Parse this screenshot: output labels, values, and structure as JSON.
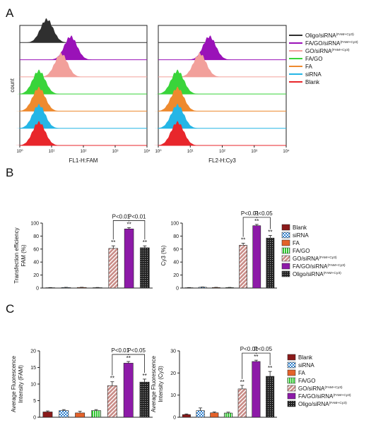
{
  "panels": {
    "a": "A",
    "b": "B",
    "c": "C"
  },
  "colors": {
    "Blank": "#e8262b",
    "siRNA": "#25b6e6",
    "FA": "#ee8a2e",
    "FA/GO": "#39d43a",
    "GO": "#f2a09b",
    "FAGO": "#9a12b8",
    "Oligo": "#2f2f2f"
  },
  "legend_top": [
    {
      "base": "Oligo/siRNA",
      "sup": "(FAM+Cy3)",
      "color": "#2f2f2f"
    },
    {
      "base": "FA/GO/siRNA",
      "sup": "(FAM+Cy3)",
      "color": "#9a12b8"
    },
    {
      "base": "GO/siRNA",
      "sup": "(FAM+Cy3)",
      "color": "#f2a09b"
    },
    {
      "base": "FA/GO",
      "sup": "",
      "color": "#39d43a"
    },
    {
      "base": "FA",
      "sup": "",
      "color": "#ee8a2e"
    },
    {
      "base": "siRNA",
      "sup": "",
      "color": "#25b6e6"
    },
    {
      "base": "Blank",
      "sup": "",
      "color": "#e8262b"
    }
  ],
  "legend_bar": [
    {
      "base": "Blank",
      "sup": "",
      "color": "#8b1a1a",
      "pattern": "solid"
    },
    {
      "base": "siRNA",
      "sup": "",
      "color": "#2a7fd0",
      "pattern": "check"
    },
    {
      "base": "FA",
      "sup": "",
      "color": "#e4622a",
      "pattern": "solid"
    },
    {
      "base": "FA/GO",
      "sup": "",
      "color": "#2fc42f",
      "pattern": "vstripe"
    },
    {
      "base": "GO/siRNA",
      "sup": "(FAM+Cy3)",
      "color": "#c98b86",
      "pattern": "diag"
    },
    {
      "base": "FA/GO/siRNA",
      "sup": "(FAM+Cy3)",
      "color": "#8d1aa8",
      "pattern": "solid"
    },
    {
      "base": "Oligo/siRNA",
      "sup": "(FAM+Cy3)",
      "color": "#222222",
      "pattern": "dots"
    }
  ],
  "chart_data": [
    {
      "type": "area",
      "panel": "A",
      "ylabel": "count",
      "xlabel": "FL1-H:FAM",
      "xscale": "log",
      "xlim": [
        1,
        10000
      ],
      "xticks": [
        "10⁰",
        "10¹",
        "10²",
        "10³",
        "10⁴"
      ],
      "series_order_top_to_bottom": [
        "Oligo/siRNA(FAM+Cy3)",
        "FA/GO/siRNA(FAM+Cy3)",
        "GO/siRNA(FAM+Cy3)",
        "FA/GO",
        "FA",
        "siRNA",
        "Blank"
      ],
      "peaks_log10": [
        0.85,
        1.6,
        1.3,
        0.6,
        0.6,
        0.6,
        0.6
      ]
    },
    {
      "type": "area",
      "panel": "A",
      "ylabel": "",
      "xlabel": "FL2-H:Cy3",
      "xscale": "log",
      "xlim": [
        1,
        10000
      ],
      "xticks": [
        "10⁰",
        "10¹",
        "10²",
        "10³",
        "10⁴"
      ],
      "series_order_top_to_bottom": [
        "Oligo/siRNA(FAM+Cy3)",
        "FA/GO/siRNA(FAM+Cy3)",
        "GO/siRNA(FAM+Cy3)",
        "FA/GO",
        "FA",
        "siRNA",
        "Blank"
      ],
      "peaks_log10": [
        null,
        1.6,
        1.3,
        0.6,
        0.6,
        0.6,
        0.6
      ]
    },
    {
      "type": "bar",
      "panel": "B",
      "ylabel": [
        "Transfection efficiency",
        "FAM (%)"
      ],
      "ylim": [
        0,
        100
      ],
      "yticks": [
        0,
        20,
        40,
        60,
        80,
        100
      ],
      "categories": [
        "Blank",
        "siRNA",
        "FA",
        "FA/GO",
        "GO/siRNA(FAM+Cy3)",
        "FA/GO/siRNA(FAM+Cy3)",
        "Oligo/siRNA(FAM+Cy3)"
      ],
      "values": [
        0.5,
        0.8,
        0.9,
        0.6,
        61,
        91,
        62
      ],
      "errors": [
        0.3,
        0.3,
        0.3,
        0.3,
        4,
        2,
        3
      ],
      "significance": [
        "",
        "",
        "",
        "",
        "**",
        "**",
        "**"
      ],
      "brackets": [
        {
          "from": 4,
          "to": 5,
          "label": "P<0.01"
        },
        {
          "from": 5,
          "to": 6,
          "label": "P<0.01"
        }
      ]
    },
    {
      "type": "bar",
      "panel": "B",
      "ylabel": [
        "Cy3 (%)"
      ],
      "ylim": [
        0,
        100
      ],
      "yticks": [
        0,
        20,
        40,
        60,
        80,
        100
      ],
      "categories": [
        "Blank",
        "siRNA",
        "FA",
        "FA/GO",
        "GO/siRNA(FAM+Cy3)",
        "FA/GO/siRNA(FAM+Cy3)",
        "Oligo/siRNA(FAM+Cy3)"
      ],
      "values": [
        0.5,
        1.2,
        0.8,
        0.7,
        66,
        96,
        77
      ],
      "errors": [
        0.3,
        0.4,
        0.3,
        0.3,
        3,
        2,
        4
      ],
      "significance": [
        "",
        "",
        "",
        "",
        "**",
        "**",
        "**"
      ],
      "brackets": [
        {
          "from": 4,
          "to": 5,
          "label": "P<0.01"
        },
        {
          "from": 5,
          "to": 6,
          "label": "P<0.05"
        }
      ]
    },
    {
      "type": "bar",
      "panel": "C",
      "ylabel": [
        "Average Fluorescence",
        "Intensity (FAM)"
      ],
      "ylim": [
        0,
        20
      ],
      "yticks": [
        0,
        5,
        10,
        15,
        20
      ],
      "categories": [
        "Blank",
        "siRNA",
        "FA",
        "FA/GO",
        "GO/siRNA(FAM+Cy3)",
        "FA/GO/siRNA(FAM+Cy3)",
        "Oligo/siRNA(FAM+Cy3)"
      ],
      "values": [
        1.6,
        2.0,
        1.3,
        2.0,
        9.5,
        16.3,
        10.6
      ],
      "errors": [
        0.3,
        0.3,
        0.5,
        0.3,
        1.2,
        0.5,
        0.9
      ],
      "significance": [
        "",
        "",
        "",
        "",
        "**",
        "**",
        "**"
      ],
      "brackets": [
        {
          "from": 4,
          "to": 5,
          "label": "P<0.01"
        },
        {
          "from": 5,
          "to": 6,
          "label": "P<0.05"
        }
      ]
    },
    {
      "type": "bar",
      "panel": "C",
      "ylabel": [
        "Average Fluorescence",
        "Intensity (Cy3)"
      ],
      "ylim": [
        0,
        30
      ],
      "yticks": [
        0,
        10,
        20,
        30
      ],
      "categories": [
        "Blank",
        "siRNA",
        "FA",
        "FA/GO",
        "GO/siRNA(FAM+Cy3)",
        "FA/GO/siRNA(FAM+Cy3)",
        "Oligo/siRNA(FAM+Cy3)"
      ],
      "values": [
        1.2,
        3.0,
        2.0,
        1.9,
        12.8,
        25.2,
        18.5
      ],
      "errors": [
        0.3,
        1.2,
        0.4,
        0.4,
        1.6,
        0.6,
        2.2
      ],
      "significance": [
        "",
        "",
        "",
        "",
        "**",
        "**",
        "**"
      ],
      "brackets": [
        {
          "from": 4,
          "to": 5,
          "label": "P<0.01"
        },
        {
          "from": 5,
          "to": 6,
          "label": "P<0.05"
        }
      ]
    }
  ]
}
